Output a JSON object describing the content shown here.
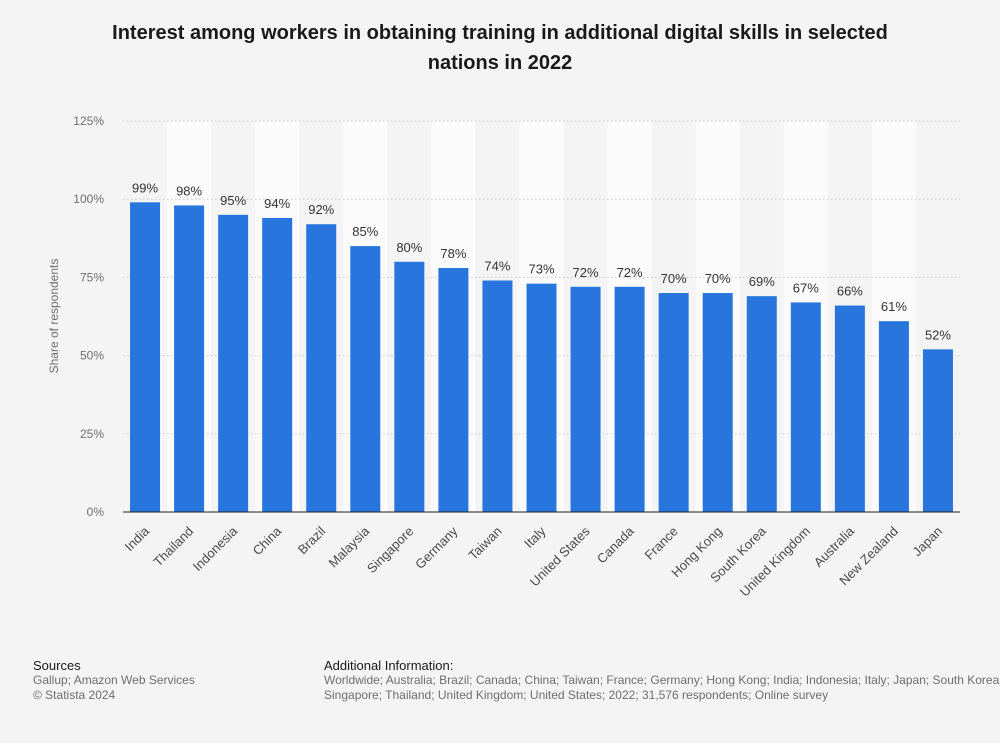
{
  "chart_data": {
    "type": "bar",
    "title": "Interest among workers in obtaining training in additional digital skills in selected nations in 2022",
    "ylabel": "Share of respondents",
    "xlabel": "",
    "ylim": [
      0,
      125
    ],
    "yticks": [
      "0%",
      "25%",
      "50%",
      "75%",
      "100%",
      "125%"
    ],
    "ytick_values": [
      0,
      25,
      50,
      75,
      100,
      125
    ],
    "grid": true,
    "value_suffix": "%",
    "categories": [
      "India",
      "Thailand",
      "Indonesia",
      "China",
      "Brazil",
      "Malaysia",
      "Singapore",
      "Germany",
      "Taiwan",
      "Italy",
      "United States",
      "Canada",
      "France",
      "Hong Kong",
      "South Korea",
      "United Kingdom",
      "Australia",
      "New Zealand",
      "Japan"
    ],
    "values": [
      99,
      98,
      95,
      94,
      92,
      85,
      80,
      78,
      74,
      73,
      72,
      72,
      70,
      70,
      69,
      67,
      66,
      61,
      52
    ],
    "bar_color": "#2876dd"
  },
  "footer": {
    "sources_heading": "Sources",
    "sources_line1": "Gallup; Amazon Web Services",
    "sources_line2": "© Statista 2024",
    "additional_heading": "Additional Information:",
    "additional_line1": "Worldwide; Australia; Brazil; Canada; China; Taiwan; France; Germany; Hong Kong; India; Indonesia; Italy; Japan; South Korea;",
    "additional_line2": "Singapore; Thailand; United Kingdom; United States; 2022; 31,576 respondents; Online survey"
  }
}
